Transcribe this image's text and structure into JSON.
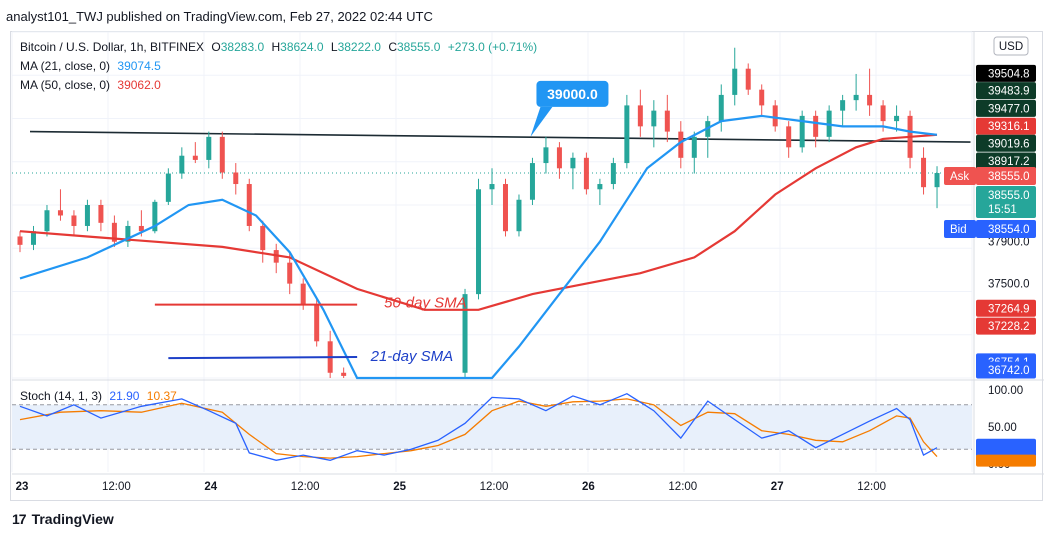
{
  "header": {
    "publish_line": "analyst101_TWJ published on TradingView.com, Feb 27, 2022 02:44 UTC"
  },
  "legend": {
    "symbol": "Bitcoin / U.S. Dollar, 1h, BITFINEX",
    "o_label": "O",
    "o": "38283.0",
    "h_label": "H",
    "h": "38624.0",
    "l_label": "L",
    "l": "38222.0",
    "c_label": "C",
    "c": "38555.0",
    "change": "+273.0 (+0.71%)",
    "ma21_label": "MA (21, close, 0)",
    "ma21_value": "39074.5",
    "ma50_label": "MA (50, close, 0)",
    "ma50_value": "39062.0",
    "stoch_label": "Stoch (14, 1, 3)",
    "stoch_k": "21.90",
    "stoch_d": "10.37"
  },
  "annotations": {
    "callout": "39000.0",
    "sma50": "50-day SMA",
    "sma21": "21-day SMA"
  },
  "currency_button": "USD",
  "price_labels": [
    {
      "text": "39504.8",
      "price": 39504.8,
      "bg": "#000000",
      "fg": "#ffffff"
    },
    {
      "text": "39483.9",
      "price": 39483.9,
      "bg": "#0d3b28",
      "fg": "#ffffff"
    },
    {
      "text": "39477.0",
      "price": 39477.0,
      "bg": "#0d3b28",
      "fg": "#ffffff"
    },
    {
      "text": "39316.1",
      "price": 39316.1,
      "bg": "#e53935",
      "fg": "#ffffff"
    },
    {
      "text": "39019.6",
      "price": 39019.6,
      "bg": "#0d3b28",
      "fg": "#ffffff"
    },
    {
      "text": "38917.2",
      "price": 38917.2,
      "bg": "#0d3b28",
      "fg": "#ffffff"
    },
    {
      "text": "38555.0",
      "price": 38555.0,
      "bg": "#ffffff",
      "fg": "#131722"
    },
    {
      "text": "38554.0",
      "price": 38554.0,
      "bg": "#2962ff",
      "fg": "#ffffff"
    },
    {
      "text": "37900.0",
      "price": 37900.0,
      "bg": "#ffffff",
      "fg": "#131722"
    },
    {
      "text": "37500.0",
      "price": 37500.0,
      "bg": "#ffffff",
      "fg": "#131722"
    },
    {
      "text": "37264.9",
      "price": 37264.9,
      "bg": "#e53935",
      "fg": "#ffffff"
    },
    {
      "text": "37228.2",
      "price": 37228.2,
      "bg": "#e53935",
      "fg": "#ffffff"
    },
    {
      "text": "36754.1",
      "price": 36754.1,
      "bg": "#2962ff",
      "fg": "#ffffff"
    },
    {
      "text": "36742.0",
      "price": 36742.0,
      "bg": "#2962ff",
      "fg": "#ffffff"
    }
  ],
  "quote_labels": {
    "ask": "Ask",
    "ask_price": "38555.0",
    "last": "38555.0",
    "countdown": "15:51",
    "bid": "Bid",
    "bid_price": "38554.0"
  },
  "stoch_axis": [
    "100.00",
    "50.00",
    "0.00"
  ],
  "x_ticks": [
    "23",
    "12:00",
    "24",
    "12:00",
    "25",
    "12:00",
    "26",
    "12:00",
    "27",
    "12:00"
  ],
  "footer": {
    "brand": "TradingView",
    "logo": "17"
  },
  "colors": {
    "up": "#26a69a",
    "down": "#ef5350",
    "ma21": "#2196f3",
    "ma50": "#e53935",
    "stoch_k": "#2962ff",
    "stoch_d": "#f57c00",
    "band": "#e8f0fb"
  },
  "chart_data": {
    "type": "candlestick",
    "title": "Bitcoin / U.S. Dollar, 1h, BITFINEX",
    "y_range": [
      36600,
      39900
    ],
    "candles": [
      {
        "t": 0,
        "o": 37950,
        "h": 38000,
        "l": 37800,
        "c": 37870
      },
      {
        "t": 2,
        "o": 37870,
        "h": 38050,
        "l": 37820,
        "c": 38000
      },
      {
        "t": 4,
        "o": 38000,
        "h": 38250,
        "l": 37950,
        "c": 38200
      },
      {
        "t": 6,
        "o": 38200,
        "h": 38400,
        "l": 38100,
        "c": 38150
      },
      {
        "t": 8,
        "o": 38150,
        "h": 38200,
        "l": 37950,
        "c": 38050
      },
      {
        "t": 10,
        "o": 38050,
        "h": 38300,
        "l": 38000,
        "c": 38250
      },
      {
        "t": 12,
        "o": 38250,
        "h": 38300,
        "l": 38000,
        "c": 38080
      },
      {
        "t": 14,
        "o": 38080,
        "h": 38150,
        "l": 37850,
        "c": 37900
      },
      {
        "t": 16,
        "o": 37900,
        "h": 38100,
        "l": 37850,
        "c": 38050
      },
      {
        "t": 18,
        "o": 38050,
        "h": 38200,
        "l": 37950,
        "c": 38000
      },
      {
        "t": 20,
        "o": 38000,
        "h": 38300,
        "l": 37980,
        "c": 38280
      },
      {
        "t": 22,
        "o": 38280,
        "h": 38600,
        "l": 38250,
        "c": 38550
      },
      {
        "t": 24,
        "o": 38550,
        "h": 38800,
        "l": 38500,
        "c": 38720
      },
      {
        "t": 26,
        "o": 38720,
        "h": 38850,
        "l": 38650,
        "c": 38680
      },
      {
        "t": 28,
        "o": 38680,
        "h": 38950,
        "l": 38600,
        "c": 38900
      },
      {
        "t": 30,
        "o": 38900,
        "h": 38950,
        "l": 38500,
        "c": 38560
      },
      {
        "t": 32,
        "o": 38560,
        "h": 38650,
        "l": 38350,
        "c": 38450
      },
      {
        "t": 34,
        "o": 38450,
        "h": 38500,
        "l": 38000,
        "c": 38050
      },
      {
        "t": 36,
        "o": 38050,
        "h": 38100,
        "l": 37700,
        "c": 37820
      },
      {
        "t": 38,
        "o": 37820,
        "h": 37880,
        "l": 37600,
        "c": 37700
      },
      {
        "t": 40,
        "o": 37700,
        "h": 37800,
        "l": 37400,
        "c": 37500
      },
      {
        "t": 42,
        "o": 37500,
        "h": 37550,
        "l": 37250,
        "c": 37300
      },
      {
        "t": 44,
        "o": 37300,
        "h": 37350,
        "l": 36900,
        "c": 36950
      },
      {
        "t": 46,
        "o": 36950,
        "h": 37050,
        "l": 36600,
        "c": 36650
      },
      {
        "t": 48,
        "o": 36650,
        "h": 36700,
        "l": 36600,
        "c": 36620
      },
      {
        "t": 66,
        "o": 36650,
        "h": 37450,
        "l": 36600,
        "c": 37400
      },
      {
        "t": 68,
        "o": 37400,
        "h": 38500,
        "l": 37350,
        "c": 38400
      },
      {
        "t": 70,
        "o": 38400,
        "h": 38600,
        "l": 38250,
        "c": 38450
      },
      {
        "t": 72,
        "o": 38450,
        "h": 38500,
        "l": 37950,
        "c": 38000
      },
      {
        "t": 74,
        "o": 38000,
        "h": 38350,
        "l": 37950,
        "c": 38300
      },
      {
        "t": 76,
        "o": 38300,
        "h": 38700,
        "l": 38250,
        "c": 38650
      },
      {
        "t": 78,
        "o": 38650,
        "h": 38900,
        "l": 38550,
        "c": 38800
      },
      {
        "t": 80,
        "o": 38800,
        "h": 38850,
        "l": 38500,
        "c": 38600
      },
      {
        "t": 82,
        "o": 38600,
        "h": 38750,
        "l": 38400,
        "c": 38700
      },
      {
        "t": 84,
        "o": 38700,
        "h": 38750,
        "l": 38350,
        "c": 38400
      },
      {
        "t": 86,
        "o": 38400,
        "h": 38500,
        "l": 38250,
        "c": 38450
      },
      {
        "t": 88,
        "o": 38450,
        "h": 38700,
        "l": 38400,
        "c": 38650
      },
      {
        "t": 90,
        "o": 38650,
        "h": 39300,
        "l": 38600,
        "c": 39200
      },
      {
        "t": 92,
        "o": 39200,
        "h": 39350,
        "l": 38900,
        "c": 39000
      },
      {
        "t": 94,
        "o": 39000,
        "h": 39250,
        "l": 38800,
        "c": 39150
      },
      {
        "t": 96,
        "o": 39150,
        "h": 39300,
        "l": 38850,
        "c": 38950
      },
      {
        "t": 98,
        "o": 38950,
        "h": 39050,
        "l": 38600,
        "c": 38700
      },
      {
        "t": 100,
        "o": 38700,
        "h": 38950,
        "l": 38550,
        "c": 38900
      },
      {
        "t": 102,
        "o": 38900,
        "h": 39100,
        "l": 38700,
        "c": 39050
      },
      {
        "t": 104,
        "o": 39050,
        "h": 39400,
        "l": 38950,
        "c": 39300
      },
      {
        "t": 106,
        "o": 39300,
        "h": 39750,
        "l": 39200,
        "c": 39550
      },
      {
        "t": 108,
        "o": 39550,
        "h": 39600,
        "l": 39300,
        "c": 39350
      },
      {
        "t": 110,
        "o": 39350,
        "h": 39400,
        "l": 39100,
        "c": 39200
      },
      {
        "t": 112,
        "o": 39200,
        "h": 39250,
        "l": 38950,
        "c": 39000
      },
      {
        "t": 114,
        "o": 39000,
        "h": 39050,
        "l": 38700,
        "c": 38800
      },
      {
        "t": 116,
        "o": 38800,
        "h": 39150,
        "l": 38750,
        "c": 39100
      },
      {
        "t": 118,
        "o": 39100,
        "h": 39150,
        "l": 38800,
        "c": 38900
      },
      {
        "t": 120,
        "o": 38900,
        "h": 39200,
        "l": 38850,
        "c": 39150
      },
      {
        "t": 122,
        "o": 39150,
        "h": 39300,
        "l": 39000,
        "c": 39250
      },
      {
        "t": 124,
        "o": 39250,
        "h": 39500,
        "l": 39150,
        "c": 39300
      },
      {
        "t": 126,
        "o": 39300,
        "h": 39550,
        "l": 39100,
        "c": 39200
      },
      {
        "t": 128,
        "o": 39200,
        "h": 39250,
        "l": 38950,
        "c": 39050
      },
      {
        "t": 130,
        "o": 39050,
        "h": 39200,
        "l": 38950,
        "c": 39100
      },
      {
        "t": 132,
        "o": 39100,
        "h": 39150,
        "l": 38600,
        "c": 38700
      },
      {
        "t": 134,
        "o": 38700,
        "h": 38800,
        "l": 38350,
        "c": 38420
      },
      {
        "t": 136,
        "o": 38420,
        "h": 38620,
        "l": 38220,
        "c": 38555
      }
    ],
    "ma21": [
      [
        0,
        37550
      ],
      [
        10,
        37750
      ],
      [
        20,
        38050
      ],
      [
        25,
        38250
      ],
      [
        30,
        38300
      ],
      [
        35,
        38150
      ],
      [
        40,
        37800
      ],
      [
        45,
        37250
      ],
      [
        50,
        36600
      ],
      [
        70,
        36600
      ],
      [
        74,
        36900
      ],
      [
        80,
        37400
      ],
      [
        86,
        37900
      ],
      [
        90,
        38300
      ],
      [
        93,
        38600
      ],
      [
        98,
        38850
      ],
      [
        104,
        39050
      ],
      [
        110,
        39100
      ],
      [
        116,
        39050
      ],
      [
        122,
        39000
      ],
      [
        128,
        39000
      ],
      [
        132,
        38950
      ],
      [
        136,
        38920
      ]
    ],
    "ma50": [
      [
        0,
        38000
      ],
      [
        10,
        37950
      ],
      [
        20,
        37900
      ],
      [
        30,
        37850
      ],
      [
        40,
        37750
      ],
      [
        50,
        37450
      ],
      [
        60,
        37250
      ],
      [
        68,
        37250
      ],
      [
        76,
        37400
      ],
      [
        84,
        37500
      ],
      [
        92,
        37600
      ],
      [
        100,
        37750
      ],
      [
        106,
        38000
      ],
      [
        112,
        38350
      ],
      [
        118,
        38600
      ],
      [
        124,
        38800
      ],
      [
        128,
        38880
      ],
      [
        132,
        38900
      ],
      [
        136,
        38920
      ]
    ],
    "stoch_k": [
      [
        0,
        78
      ],
      [
        4,
        65
      ],
      [
        8,
        80
      ],
      [
        12,
        62
      ],
      [
        18,
        78
      ],
      [
        24,
        88
      ],
      [
        28,
        72
      ],
      [
        32,
        55
      ],
      [
        34,
        15
      ],
      [
        38,
        5
      ],
      [
        42,
        12
      ],
      [
        46,
        5
      ],
      [
        50,
        18
      ],
      [
        54,
        12
      ],
      [
        58,
        20
      ],
      [
        62,
        32
      ],
      [
        66,
        55
      ],
      [
        70,
        90
      ],
      [
        74,
        88
      ],
      [
        78,
        72
      ],
      [
        82,
        92
      ],
      [
        86,
        80
      ],
      [
        90,
        95
      ],
      [
        94,
        72
      ],
      [
        98,
        35
      ],
      [
        102,
        85
      ],
      [
        106,
        60
      ],
      [
        110,
        35
      ],
      [
        114,
        45
      ],
      [
        118,
        22
      ],
      [
        122,
        40
      ],
      [
        126,
        58
      ],
      [
        130,
        75
      ],
      [
        132,
        60
      ],
      [
        134,
        12
      ],
      [
        136,
        22
      ]
    ],
    "stoch_d": [
      [
        0,
        60
      ],
      [
        6,
        70
      ],
      [
        12,
        72
      ],
      [
        18,
        70
      ],
      [
        24,
        82
      ],
      [
        30,
        70
      ],
      [
        34,
        40
      ],
      [
        38,
        14
      ],
      [
        42,
        10
      ],
      [
        46,
        8
      ],
      [
        50,
        10
      ],
      [
        54,
        14
      ],
      [
        58,
        18
      ],
      [
        62,
        25
      ],
      [
        66,
        40
      ],
      [
        70,
        72
      ],
      [
        74,
        85
      ],
      [
        78,
        78
      ],
      [
        82,
        84
      ],
      [
        86,
        85
      ],
      [
        90,
        88
      ],
      [
        94,
        80
      ],
      [
        98,
        52
      ],
      [
        102,
        70
      ],
      [
        106,
        68
      ],
      [
        110,
        45
      ],
      [
        114,
        40
      ],
      [
        118,
        32
      ],
      [
        122,
        30
      ],
      [
        126,
        45
      ],
      [
        130,
        65
      ],
      [
        132,
        62
      ],
      [
        134,
        30
      ],
      [
        136,
        10
      ]
    ],
    "trendline": [
      [
        0,
        38950
      ],
      [
        138,
        38850
      ]
    ],
    "grid": true
  }
}
